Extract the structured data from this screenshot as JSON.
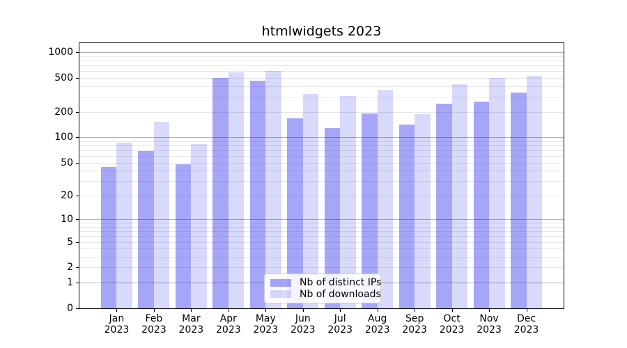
{
  "title": "htmlwidgets 2023",
  "chart_data": {
    "type": "bar",
    "title": "htmlwidgets 2023",
    "x": {
      "months": [
        "Jan",
        "Feb",
        "Mar",
        "Apr",
        "May",
        "Jun",
        "Jul",
        "Aug",
        "Sep",
        "Oct",
        "Nov",
        "Dec"
      ],
      "year": "2023"
    },
    "series": [
      {
        "name": "Nb of distinct IPs",
        "color": "rgba(0,0,238,0.35)",
        "values": [
          44,
          68,
          48,
          503,
          461,
          167,
          128,
          191,
          140,
          250,
          262,
          339
        ]
      },
      {
        "name": "Nb of downloads",
        "color": "rgba(0,0,238,0.15)",
        "values": [
          86,
          151,
          83,
          585,
          607,
          325,
          305,
          363,
          189,
          418,
          500,
          532
        ]
      }
    ],
    "y_axis": {
      "scale": "log1p",
      "tick_labels": [
        "1000",
        "500",
        "200",
        "100",
        "50",
        "20",
        "10",
        "5",
        "2",
        "1",
        "0"
      ],
      "tick_values": [
        1000,
        500,
        200,
        100,
        50,
        20,
        10,
        5,
        2,
        1,
        0
      ],
      "top_value": 1277,
      "bottom_value": 0
    },
    "grid": {
      "major_values": [
        1,
        10,
        100,
        1000
      ],
      "minor_values": [
        2,
        3,
        4,
        5,
        6,
        7,
        8,
        9,
        20,
        30,
        40,
        50,
        60,
        70,
        80,
        90,
        200,
        300,
        400,
        500,
        600,
        700,
        800,
        900
      ],
      "major_color": "#b0b0b0",
      "minor_color": "#e6e6e6"
    },
    "legend": {
      "position": "lower center",
      "entries": [
        "Nb of distinct IPs",
        "Nb of downloads"
      ]
    }
  },
  "colors": {
    "background": "#ffffff",
    "axis": "#000000",
    "text": "#000000",
    "legend_border": "#cccccc"
  }
}
